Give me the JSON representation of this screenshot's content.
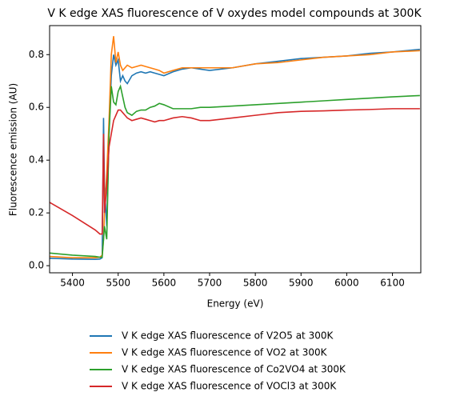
{
  "chart_data": {
    "type": "line",
    "title": "V K edge XAS fluorescence of V oxydes model compounds at 300K",
    "x_label": "Energy (eV)",
    "y_label": "Fluorescence emission (AU)",
    "x": [
      5350,
      5400,
      5450,
      5460,
      5465,
      5468,
      5470,
      5475,
      5480,
      5485,
      5490,
      5495,
      5500,
      5505,
      5510,
      5515,
      5520,
      5530,
      5540,
      5550,
      5560,
      5570,
      5580,
      5590,
      5600,
      5620,
      5640,
      5660,
      5680,
      5700,
      5750,
      5800,
      5850,
      5900,
      5950,
      6000,
      6050,
      6100,
      6160
    ],
    "series": [
      {
        "name": "V K edge XAS fluorescence of V2O5 at 300K",
        "color": "#1f77b4",
        "values": [
          0.028,
          0.025,
          0.024,
          0.025,
          0.03,
          0.56,
          0.3,
          0.15,
          0.5,
          0.72,
          0.8,
          0.76,
          0.78,
          0.7,
          0.72,
          0.7,
          0.69,
          0.72,
          0.73,
          0.735,
          0.73,
          0.735,
          0.73,
          0.725,
          0.72,
          0.735,
          0.745,
          0.75,
          0.745,
          0.74,
          0.75,
          0.765,
          0.775,
          0.785,
          0.79,
          0.795,
          0.805,
          0.81,
          0.82
        ]
      },
      {
        "name": "V K edge XAS fluorescence of VO2 at 300K",
        "color": "#ff7f0e",
        "values": [
          0.035,
          0.03,
          0.03,
          0.032,
          0.04,
          0.1,
          0.2,
          0.35,
          0.55,
          0.8,
          0.87,
          0.77,
          0.81,
          0.76,
          0.74,
          0.75,
          0.76,
          0.75,
          0.755,
          0.76,
          0.755,
          0.75,
          0.745,
          0.74,
          0.73,
          0.74,
          0.75,
          0.75,
          0.75,
          0.75,
          0.75,
          0.765,
          0.77,
          0.78,
          0.79,
          0.795,
          0.8,
          0.81,
          0.815
        ]
      },
      {
        "name": "V K edge XAS fluorescence of Co2VO4 at 300K",
        "color": "#2ca02c",
        "values": [
          0.048,
          0.04,
          0.035,
          0.032,
          0.032,
          0.1,
          0.15,
          0.1,
          0.5,
          0.68,
          0.62,
          0.61,
          0.66,
          0.68,
          0.64,
          0.6,
          0.58,
          0.57,
          0.585,
          0.59,
          0.59,
          0.6,
          0.605,
          0.615,
          0.61,
          0.595,
          0.595,
          0.595,
          0.6,
          0.6,
          0.605,
          0.61,
          0.615,
          0.62,
          0.625,
          0.63,
          0.635,
          0.64,
          0.645
        ]
      },
      {
        "name": "V K edge XAS fluorescence of VOCl3 at 300K",
        "color": "#d62728",
        "values": [
          0.24,
          0.19,
          0.135,
          0.12,
          0.12,
          0.5,
          0.2,
          0.3,
          0.45,
          0.5,
          0.55,
          0.57,
          0.59,
          0.59,
          0.58,
          0.57,
          0.56,
          0.55,
          0.555,
          0.56,
          0.555,
          0.55,
          0.545,
          0.55,
          0.55,
          0.56,
          0.565,
          0.56,
          0.55,
          0.55,
          0.56,
          0.57,
          0.58,
          0.585,
          0.587,
          0.59,
          0.592,
          0.595,
          0.595
        ]
      }
    ],
    "xlim": [
      5350,
      6162
    ],
    "ylim": [
      -0.027,
      0.91
    ],
    "xticks": [
      5400,
      5500,
      5600,
      5700,
      5800,
      5900,
      6000,
      6100
    ],
    "yticks": [
      {
        "value": 0,
        "label": "0.0"
      },
      0.2,
      0.4,
      0.6,
      0.8
    ],
    "grid": false,
    "legend": "below"
  }
}
